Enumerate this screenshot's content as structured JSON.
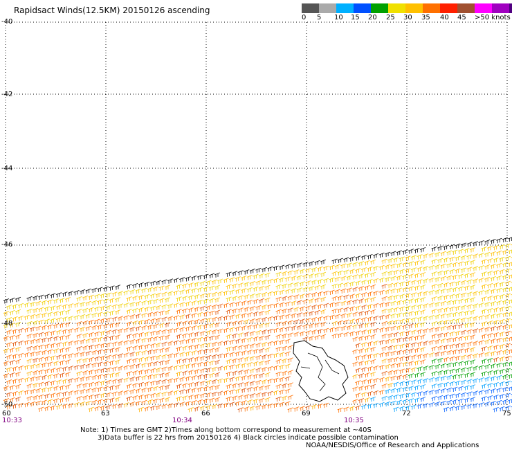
{
  "title": "Rapidsact Winds(12.5KM) 20150126 ascending",
  "legend": {
    "labels": [
      "0",
      "5",
      "10",
      "15",
      "20",
      "25",
      "30",
      "35",
      "40",
      "45",
      ">50 knots"
    ],
    "colors": [
      "#555555",
      "#aaaaaa",
      "#00b0ff",
      "#0050ff",
      "#00a000",
      "#f0e000",
      "#ffc000",
      "#ff7000",
      "#ff2000",
      "#a05030",
      "#ff00ff",
      "#a000c0",
      "#500080"
    ]
  },
  "lat_labels": [
    "-40",
    "-42",
    "-44",
    "-46",
    "-48",
    "-50"
  ],
  "lon_labels": [
    "60",
    "63",
    "66",
    "69",
    "72",
    "75"
  ],
  "time_labels": [
    "10:33",
    "10:34",
    "10:35"
  ],
  "notes": {
    "line1": "Note: 1) Times are GMT 2)Times along bottom correspond to measurement at ~40S",
    "line2": "3)Data buffer is 22 hrs from 20150126 4) Black circles indicate possible contamination",
    "line3": "NOAA/NESDIS/Office of Research and Applications"
  }
}
